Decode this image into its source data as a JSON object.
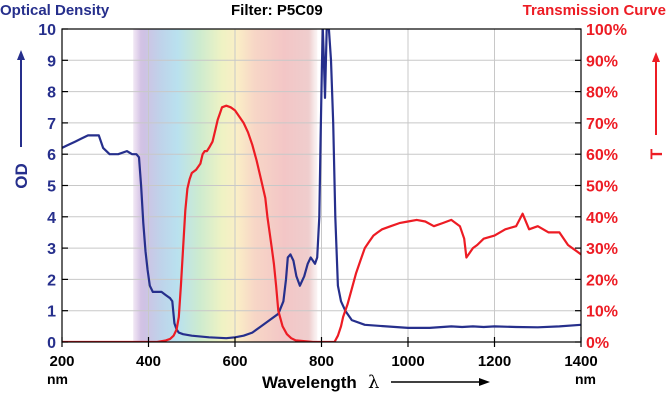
{
  "header": {
    "left_title": "Optical Density",
    "center_title": "Filter: P5C09",
    "right_title": "Transmission Curve"
  },
  "colors": {
    "od": "#262f8c",
    "transmission": "#ed1c24",
    "grid": "#c8c8c8",
    "axis": "#000000"
  },
  "chart_data": {
    "type": "line",
    "title": "Filter: P5C09",
    "xlabel": "Wavelength",
    "xlabel_symbol": "λ",
    "x_unit": "nm",
    "xlim": [
      200,
      1400
    ],
    "x_ticks": [
      "200",
      "400",
      "600",
      "800",
      "1000",
      "1200",
      "1400"
    ],
    "y_left": {
      "label": "OD",
      "lim": [
        0,
        10
      ],
      "ticks": [
        "0",
        "1",
        "2",
        "3",
        "4",
        "5",
        "6",
        "7",
        "8",
        "9",
        "10"
      ]
    },
    "y_right": {
      "label": "T",
      "lim": [
        0,
        100
      ],
      "ticks": [
        "0%",
        "10%",
        "20%",
        "30%",
        "40%",
        "50%",
        "60%",
        "70%",
        "80%",
        "90%",
        "100%"
      ]
    },
    "grid": true,
    "visible_spectrum_band_nm": [
      365,
      790
    ],
    "series": [
      {
        "axis": "left",
        "color": "#262f8c",
        "x": [
          200,
          215,
          230,
          245,
          260,
          275,
          285,
          295,
          310,
          330,
          350,
          362,
          372,
          378,
          383,
          388,
          393,
          398,
          403,
          410,
          420,
          430,
          440,
          450,
          455,
          460,
          465,
          470,
          480,
          500,
          540,
          580,
          600,
          620,
          640,
          660,
          680,
          700,
          712,
          718,
          722,
          728,
          735,
          742,
          750,
          760,
          768,
          775,
          780,
          785,
          790,
          795,
          798,
          801,
          803,
          805,
          808,
          812,
          817,
          822,
          827,
          832,
          838,
          845,
          855,
          870,
          900,
          950,
          1000,
          1050,
          1100,
          1125,
          1150,
          1175,
          1200,
          1250,
          1300,
          1350,
          1400
        ],
        "values": [
          6.2,
          6.3,
          6.4,
          6.5,
          6.6,
          6.6,
          6.6,
          6.2,
          6.0,
          6.0,
          6.1,
          6.0,
          6.0,
          5.9,
          5.0,
          3.8,
          2.9,
          2.3,
          1.8,
          1.6,
          1.6,
          1.6,
          1.5,
          1.4,
          1.3,
          0.6,
          0.4,
          0.3,
          0.25,
          0.2,
          0.15,
          0.12,
          0.15,
          0.2,
          0.3,
          0.5,
          0.7,
          0.9,
          1.3,
          2.0,
          2.7,
          2.8,
          2.6,
          2.1,
          1.8,
          2.1,
          2.5,
          2.7,
          2.6,
          2.5,
          2.7,
          4.0,
          6.5,
          8.8,
          10,
          9.2,
          7.8,
          10,
          10,
          9.0,
          7.0,
          4.0,
          1.8,
          1.3,
          1.0,
          0.7,
          0.55,
          0.5,
          0.45,
          0.45,
          0.5,
          0.48,
          0.5,
          0.48,
          0.5,
          0.48,
          0.47,
          0.5,
          0.55
        ]
      },
      {
        "axis": "right",
        "color": "#ed1c24",
        "x": [
          200,
          420,
          440,
          450,
          458,
          465,
          470,
          475,
          480,
          485,
          490,
          495,
          500,
          510,
          520,
          525,
          530,
          535,
          540,
          548,
          555,
          560,
          565,
          570,
          580,
          590,
          600,
          610,
          620,
          630,
          640,
          650,
          660,
          670,
          675,
          680,
          685,
          690,
          695,
          700,
          710,
          720,
          730,
          740,
          780,
          830,
          838,
          845,
          850,
          860,
          870,
          880,
          890,
          900,
          910,
          920,
          930,
          940,
          960,
          980,
          1000,
          1020,
          1040,
          1060,
          1080,
          1100,
          1120,
          1130,
          1135,
          1140,
          1150,
          1160,
          1175,
          1200,
          1225,
          1250,
          1265,
          1280,
          1300,
          1325,
          1350,
          1370,
          1380,
          1390,
          1400
        ],
        "values": [
          0,
          0,
          0.5,
          1,
          2,
          4,
          8,
          18,
          30,
          42,
          49,
          52,
          54,
          55,
          57,
          60,
          61,
          61,
          62,
          64,
          68,
          71,
          73,
          75,
          75.5,
          75,
          74,
          72,
          70,
          67,
          63,
          58,
          52,
          46,
          40,
          35,
          30,
          25,
          18,
          10,
          5,
          2.5,
          1.2,
          0.5,
          0,
          0,
          2,
          5,
          8,
          12,
          17,
          22,
          26,
          30,
          32,
          34,
          35,
          36,
          37,
          38,
          38.5,
          39,
          38.5,
          37,
          38,
          39,
          37,
          33,
          27,
          28,
          30,
          31,
          33,
          34,
          36,
          37,
          41,
          36,
          37,
          35,
          35,
          31,
          30,
          29,
          28
        ]
      }
    ]
  }
}
